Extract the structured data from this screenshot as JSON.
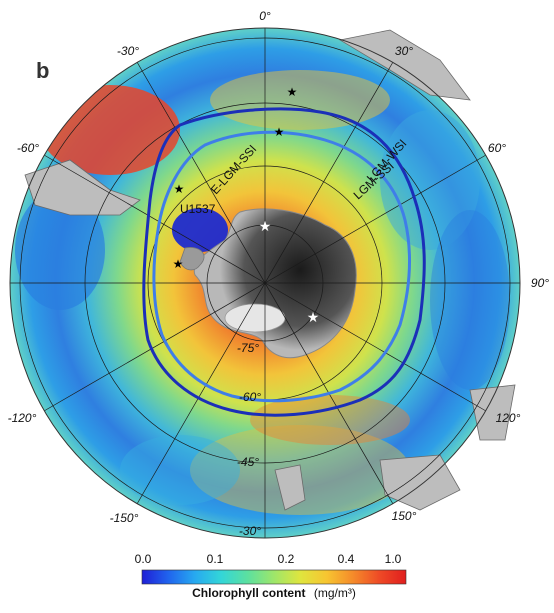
{
  "panel_label": "b",
  "longitude_labels": [
    "0°",
    "30°",
    "60°",
    "90°",
    "120°",
    "150°",
    "-30°",
    "-60°",
    "-120°",
    "-150°"
  ],
  "latitude_labels": [
    "-75°",
    "-60°",
    "-45°",
    "-30°"
  ],
  "fronts": {
    "e_lgm_ssi": "E-LGM-SSI",
    "lgm_wsi": "LGM-WSI",
    "lgm_ssi": "LGM-SSI"
  },
  "site_label": "U1537",
  "colors": {
    "lgm_wsi": "#1b2fb8",
    "lgm_ssi": "#3f7ee8",
    "star_black": "#000000",
    "star_white": "#ffffff"
  },
  "legend": {
    "title": "Chlorophyll content",
    "units": "(mg/m³)",
    "ticks": [
      "0.0",
      "0.1",
      "0.2",
      "0.4",
      "1.0"
    ],
    "colors": [
      "#1f1fd6",
      "#2064ee",
      "#27a9f0",
      "#33d6d8",
      "#5ce0a0",
      "#9ee66a",
      "#dfe53e",
      "#f7c531",
      "#f58a2a",
      "#ee4a26",
      "#e01e1e"
    ]
  }
}
